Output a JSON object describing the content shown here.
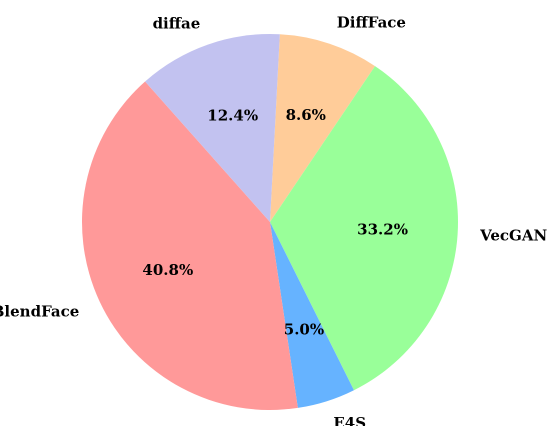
{
  "chart_data": {
    "type": "pie",
    "title": "",
    "start_angle_deg": 87,
    "direction": "clockwise",
    "slices": [
      {
        "label": "DiffFace",
        "value": 8.6,
        "pct_label": "8.6%",
        "color": "#FFCC99"
      },
      {
        "label": "VecGAN",
        "value": 33.2,
        "pct_label": "33.2%",
        "color": "#99FF99"
      },
      {
        "label": "E4S",
        "value": 5.0,
        "pct_label": "5.0%",
        "color": "#66B3FF"
      },
      {
        "label": "BlendFace",
        "value": 40.8,
        "pct_label": "40.8%",
        "color": "#FF9999"
      },
      {
        "label": "diffae",
        "value": 12.4,
        "pct_label": "12.4%",
        "color": "#C2C2F0"
      }
    ]
  }
}
